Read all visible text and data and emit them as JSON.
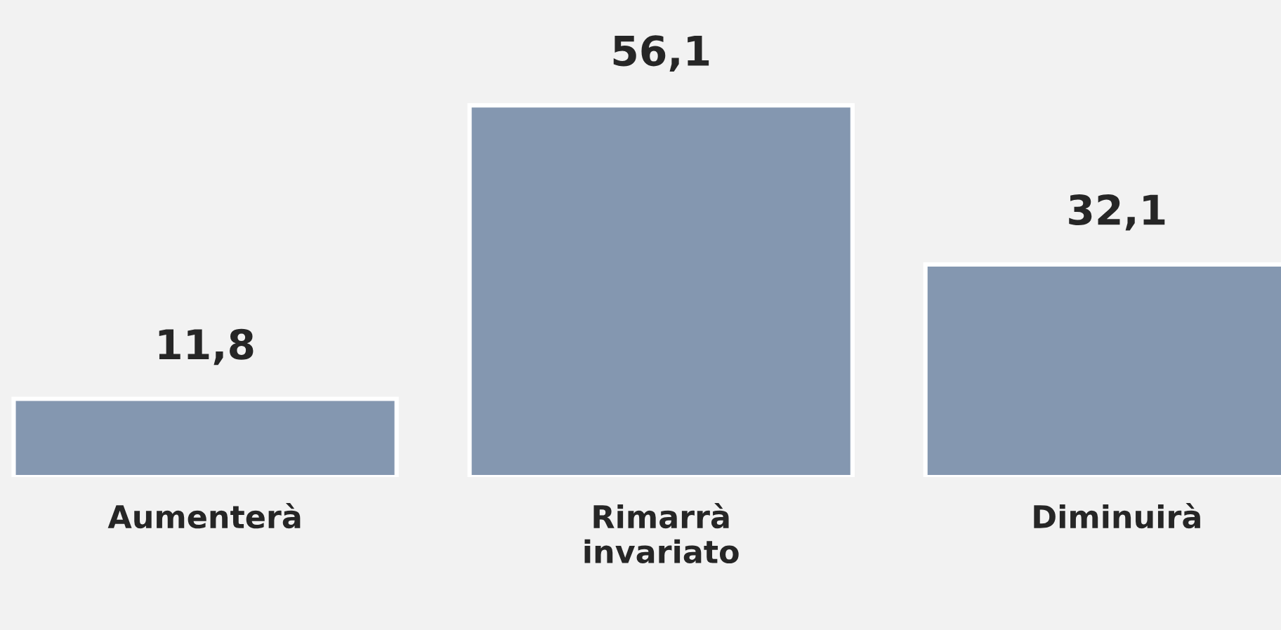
{
  "chart_data": {
    "type": "bar",
    "categories": [
      "Aumenterà",
      "Rimarrà\ninvariato",
      "Diminuirà"
    ],
    "values": [
      11.8,
      56.1,
      32.1
    ],
    "value_labels": [
      "11,8",
      "56,1",
      "32,1"
    ],
    "color": "#8497b0",
    "ylim": [
      0,
      72
    ],
    "tick_labels": "x",
    "grid": false,
    "legend": false
  }
}
